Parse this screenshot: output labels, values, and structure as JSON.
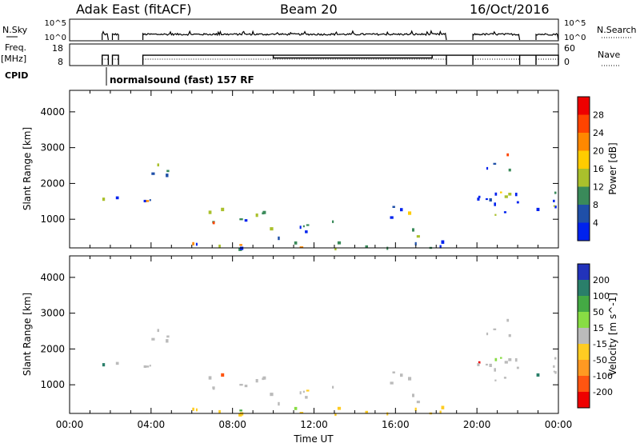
{
  "header": {
    "station": "Adak East (fitACF)",
    "beam": "Beam 20",
    "date": "16/Oct/2016"
  },
  "panels": {
    "nsky": {
      "label": "N.Sky",
      "ticks": [
        "10^5",
        "10^0"
      ],
      "right_label": "N.Search",
      "right_ticks": [
        "10^5",
        "10^0"
      ]
    },
    "freq": {
      "label": "Freq.",
      "unit": "[MHz]",
      "ticks": [
        "18",
        "8"
      ],
      "right_label": "Nave",
      "right_ticks": [
        "60",
        "0"
      ]
    },
    "cpid": {
      "label": "CPID",
      "program": "normalsound (fast) 157 RF"
    }
  },
  "chart_data": [
    {
      "type": "heatmap",
      "name": "Power",
      "ylabel": "Slant Range [km]",
      "ylim": [
        200,
        4600
      ],
      "yticks": [
        1000,
        2000,
        3000,
        4000
      ],
      "colorbar": {
        "label": "Power [dB]",
        "ticks": [
          "28",
          "24",
          "20",
          "16",
          "12",
          "8",
          "4"
        ],
        "colors": [
          "#ee0000",
          "#ff4400",
          "#ff8800",
          "#ffcc00",
          "#aac02c",
          "#3a8a5a",
          "#1f4fa8",
          "#0022ee"
        ]
      }
    },
    {
      "type": "heatmap",
      "name": "Velocity",
      "ylabel": "Slant Range [km]",
      "ylim": [
        200,
        4600
      ],
      "yticks": [
        1000,
        2000,
        3000,
        4000
      ],
      "xlabel": "Time UT",
      "xticks": [
        "00:00",
        "04:00",
        "08:00",
        "12:00",
        "16:00",
        "20:00",
        "00:00"
      ],
      "xlim_hours": [
        0,
        24
      ],
      "colorbar": {
        "label": "Velocity [m s^-1]",
        "ticks": [
          "200",
          "100",
          "50",
          "15",
          "-15",
          "-50",
          "-100",
          "-200"
        ],
        "colors": [
          "#2233bb",
          "#2a7f6a",
          "#44aa44",
          "#88dd44",
          "#bbbbbb",
          "#ffcc22",
          "#ff9922",
          "#ff5511",
          "#ee0000"
        ]
      }
    }
  ]
}
